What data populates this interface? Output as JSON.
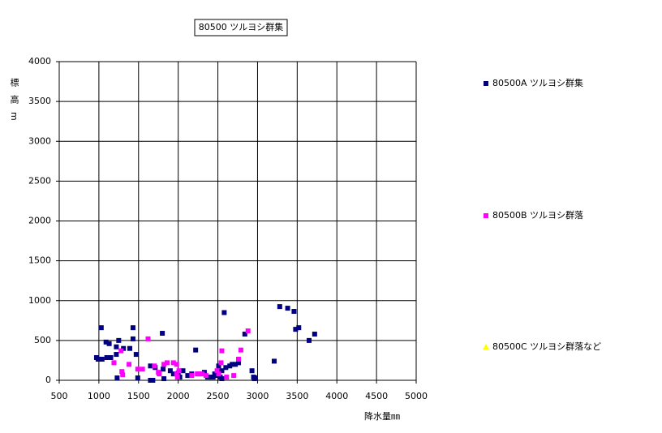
{
  "chart_data": {
    "type": "scatter",
    "title": "80500 ツルヨシ群集",
    "x_label": "降水量㎜",
    "y_label": "標高m",
    "xlim": [
      500,
      5000
    ],
    "xticks": [
      500,
      1000,
      1500,
      2000,
      2500,
      3000,
      3500,
      4000,
      4500,
      5000
    ],
    "ylim": [
      0,
      4000
    ],
    "yticks": [
      0,
      500,
      1000,
      1500,
      2000,
      2500,
      3000,
      3500,
      4000
    ],
    "grid": true,
    "legend": "right",
    "series": [
      {
        "name": "80500A ツルヨシ群集",
        "color": "#000080",
        "marker": "square",
        "x": [
          970,
          990,
          1030,
          1040,
          1090,
          1130,
          1100,
          1150,
          1220,
          1250,
          1220,
          1230,
          1310,
          1390,
          1430,
          1430,
          1470,
          1490,
          1650,
          1650,
          1680,
          1710,
          1800,
          1810,
          1820,
          1900,
          1940,
          2000,
          2020,
          2060,
          2120,
          2170,
          2220,
          2260,
          2330,
          2370,
          2410,
          2440,
          2460,
          2490,
          2530,
          2510,
          2550,
          2580,
          2600,
          2650,
          2680,
          2720,
          2760,
          2840,
          2930,
          2950,
          2960,
          2975,
          2550,
          3210,
          3280,
          3380,
          3460,
          3480,
          3520,
          3650,
          3720
        ],
        "values": [
          285,
          265,
          660,
          265,
          480,
          460,
          285,
          285,
          420,
          500,
          325,
          30,
          400,
          400,
          660,
          520,
          325,
          30,
          180,
          0,
          0,
          160,
          590,
          140,
          20,
          120,
          80,
          90,
          40,
          120,
          60,
          80,
          380,
          80,
          100,
          40,
          40,
          40,
          80,
          60,
          40,
          180,
          120,
          850,
          160,
          180,
          200,
          200,
          220,
          580,
          120,
          40,
          20,
          30,
          20,
          240,
          925,
          905,
          865,
          640,
          660,
          500,
          580
        ]
      },
      {
        "name": "80500B ツルヨシ群落",
        "color": "#ff00ff",
        "marker": "square",
        "x": [
          1190,
          1280,
          1290,
          1300,
          1380,
          1490,
          1550,
          1620,
          1700,
          1750,
          1760,
          1820,
          1860,
          1940,
          1980,
          1980,
          1990,
          2010,
          2170,
          2240,
          2300,
          2350,
          2490,
          2510,
          2550,
          2540,
          2610,
          2700,
          2760,
          2790,
          2880
        ],
        "values": [
          220,
          370,
          110,
          70,
          200,
          140,
          140,
          520,
          180,
          100,
          80,
          200,
          220,
          220,
          200,
          80,
          40,
          120,
          60,
          80,
          80,
          60,
          120,
          80,
          370,
          220,
          40,
          60,
          265,
          380,
          620
        ]
      },
      {
        "name": "80500C ツルヨシ群落など",
        "color": "#ffff00",
        "marker": "triangle",
        "x": [],
        "values": []
      }
    ]
  }
}
